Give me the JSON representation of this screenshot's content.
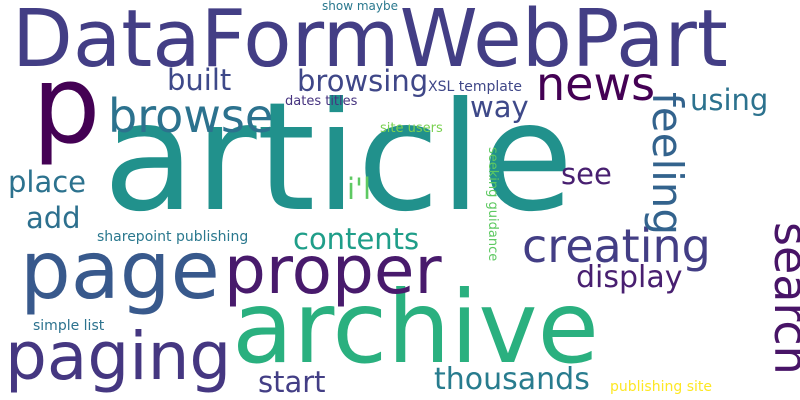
{
  "words": [
    {
      "text": "article",
      "color": "#21918c",
      "vertical": false
    },
    {
      "text": "DataFormWebPart",
      "color": "#433e85",
      "vertical": false
    },
    {
      "text": "archive",
      "color": "#2ab07f",
      "vertical": false
    },
    {
      "text": "page",
      "color": "#38598c",
      "vertical": false
    },
    {
      "text": "p",
      "color": "#440154",
      "vertical": false
    },
    {
      "text": "paging",
      "color": "#453781",
      "vertical": false
    },
    {
      "text": "proper",
      "color": "#481a6c",
      "vertical": false
    },
    {
      "text": "creating",
      "color": "#433e85",
      "vertical": false
    },
    {
      "text": "browse",
      "color": "#2c728e",
      "vertical": false
    },
    {
      "text": "news",
      "color": "#440154",
      "vertical": false
    },
    {
      "text": "search",
      "color": "#481467",
      "vertical": true
    },
    {
      "text": "feeling",
      "color": "#33638d",
      "vertical": true
    },
    {
      "text": "browsing",
      "color": "#3f4788",
      "vertical": false
    },
    {
      "text": "thousands",
      "color": "#287c8e",
      "vertical": false
    },
    {
      "text": "contents",
      "color": "#1f9e89",
      "vertical": false
    },
    {
      "text": "display",
      "color": "#481f70",
      "vertical": false
    },
    {
      "text": "using",
      "color": "#2c728e",
      "vertical": false
    },
    {
      "text": "built",
      "color": "#3e4989",
      "vertical": false
    },
    {
      "text": "place",
      "color": "#2c728e",
      "vertical": false
    },
    {
      "text": "start",
      "color": "#433e85",
      "vertical": false
    },
    {
      "text": "way",
      "color": "#3e4989",
      "vertical": false
    },
    {
      "text": "see",
      "color": "#481f70",
      "vertical": false
    },
    {
      "text": "add",
      "color": "#2d708e",
      "vertical": false
    },
    {
      "text": "i'l",
      "color": "#5ec962",
      "vertical": false
    },
    {
      "text": "sharepoint publishing",
      "color": "#2a788e",
      "vertical": false
    },
    {
      "text": "simple list",
      "color": "#2c728e",
      "vertical": false
    },
    {
      "text": "XSL template",
      "color": "#3f4788",
      "vertical": false
    },
    {
      "text": "dates titles",
      "color": "#46337f",
      "vertical": false
    },
    {
      "text": "show maybe",
      "color": "#2a788e",
      "vertical": false
    },
    {
      "text": "site users",
      "color": "#7ad151",
      "vertical": false
    },
    {
      "text": "seeking guidance",
      "color": "#5ec962",
      "vertical": true
    },
    {
      "text": "publishing site",
      "color": "#fde725",
      "vertical": false
    }
  ]
}
